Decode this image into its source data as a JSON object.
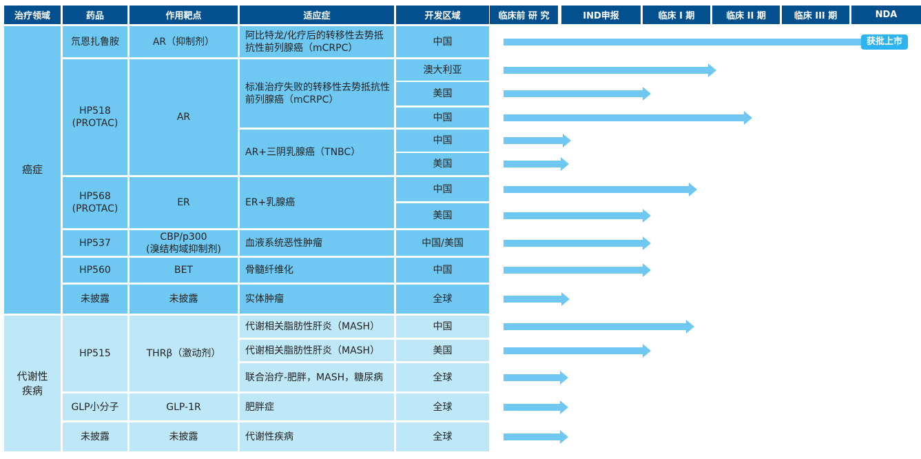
{
  "chart_data": {
    "type": "table",
    "headers": [
      "治疗领域",
      "药品",
      "作用靶点",
      "适应症",
      "开发区域"
    ],
    "stages": [
      "临床前 研 究",
      "IND申报",
      "临床 I 期",
      "临床 II 期",
      "临床 III 期",
      "NDA"
    ],
    "progress_unit": "stage columns completed (0 = start of 临床前研究, 6 = end of NDA)",
    "colors": {
      "header": "#04508F",
      "cancer": "#6EC8F2",
      "metabolic": "#BEE8F7",
      "arrow": "#6EC8F2",
      "approved_badge": "#2DB4EE"
    },
    "areas": [
      {
        "name": "癌症",
        "color": "#6EC8F2",
        "drugs": [
          {
            "name": "氘恩扎鲁胺",
            "target": "AR（抑制剂）",
            "indications": [
              {
                "name": "阿比特龙/化疗后的转移性去势抵抗性前列腺癌（mCRPC）",
                "regions": [
                  {
                    "region": "中国",
                    "progress": 6,
                    "label": "获批上市"
                  }
                ]
              }
            ]
          },
          {
            "name": "HP518\n(PROTAC)",
            "target": "AR",
            "indications": [
              {
                "name": "标准治疗失败的转移性去势抵抗性前列腺癌（mCRPC）",
                "regions": [
                  {
                    "region": "澳大利亚",
                    "progress": 3.09
                  },
                  {
                    "region": "美国",
                    "progress": 2.15
                  },
                  {
                    "region": "中国",
                    "progress": 3.6
                  }
                ]
              },
              {
                "name": "AR+三阴乳腺癌（TNBC）",
                "regions": [
                  {
                    "region": "中国",
                    "progress": 1.14
                  },
                  {
                    "region": "美国",
                    "progress": 1.12
                  }
                ]
              }
            ]
          },
          {
            "name": "HP568\n(PROTAC)",
            "target": "ER",
            "indications": [
              {
                "name": "ER+乳腺癌",
                "regions": [
                  {
                    "region": "中国",
                    "progress": 2.81
                  },
                  {
                    "region": "美国",
                    "progress": 2.15
                  }
                ]
              }
            ]
          },
          {
            "name": "HP537",
            "target": "CBP/p300\n(溴结构域抑制剂)",
            "indications": [
              {
                "name": "血液系统恶性肿瘤",
                "regions": [
                  {
                    "region": "中国/美国",
                    "progress": 2.15
                  }
                ]
              }
            ]
          },
          {
            "name": "HP560",
            "target": "BET",
            "indications": [
              {
                "name": "骨髓纤维化",
                "regions": [
                  {
                    "region": "中国",
                    "progress": 2.15
                  }
                ]
              }
            ]
          },
          {
            "name": "未披露",
            "target": "未披露",
            "indications": [
              {
                "name": "实体肿瘤",
                "regions": [
                  {
                    "region": "全球",
                    "progress": 1.13
                  }
                ]
              }
            ]
          }
        ]
      },
      {
        "name": "代谢性\n疾病",
        "color": "#BEE8F7",
        "drugs": [
          {
            "name": "HP515",
            "target": "THRβ（激动剂）",
            "indications": [
              {
                "name": "代谢相关脂肪性肝炎（MASH）",
                "regions": [
                  {
                    "region": "中国",
                    "progress": 2.77
                  }
                ]
              },
              {
                "name": "代谢相关脂肪性肝炎（MASH）",
                "regions": [
                  {
                    "region": "美国",
                    "progress": 2.15
                  }
                ]
              },
              {
                "name": "联合治疗-肥胖，MASH，糖尿病",
                "regions": [
                  {
                    "region": "全球",
                    "progress": 1.11
                  }
                ]
              }
            ]
          },
          {
            "name": "GLP小分子",
            "target": "GLP-1R",
            "indications": [
              {
                "name": "肥胖症",
                "regions": [
                  {
                    "region": "全球",
                    "progress": 1.11
                  }
                ]
              }
            ]
          },
          {
            "name": "未披露",
            "target": "未披露",
            "indications": [
              {
                "name": "代谢性疾病",
                "regions": [
                  {
                    "region": "全球",
                    "progress": 1.11
                  }
                ]
              }
            ]
          }
        ]
      }
    ]
  }
}
